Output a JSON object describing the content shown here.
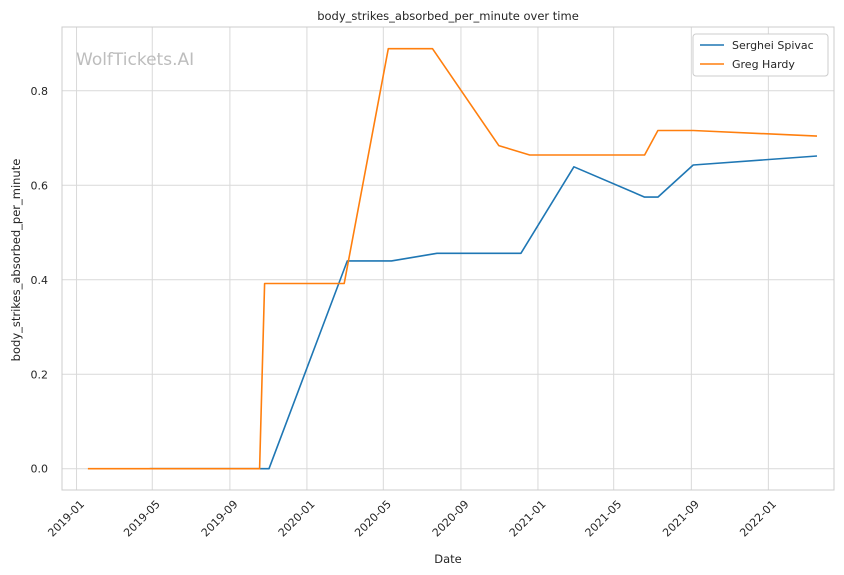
{
  "watermark": "WolfTickets.AI",
  "chart_data": {
    "type": "line",
    "title": "body_strikes_absorbed_per_minute over time",
    "xlabel": "Date",
    "ylabel": "body_strikes_absorbed_per_minute",
    "x_ticks": [
      "2019-01",
      "2019-05",
      "2019-09",
      "2020-01",
      "2020-05",
      "2020-09",
      "2021-01",
      "2021-05",
      "2021-09",
      "2022-01"
    ],
    "y_ticks": [
      "0.0",
      "0.2",
      "0.4",
      "0.6",
      "0.8"
    ],
    "xlim": [
      "2018-12-09",
      "2022-04-15"
    ],
    "ylim": [
      -0.045,
      0.935
    ],
    "grid": true,
    "legend_position": "top-right",
    "series": [
      {
        "name": "Serghei Spivac",
        "color": "#1f77b4",
        "points": [
          {
            "x": "2019-04-27",
            "y": 0.0
          },
          {
            "x": "2019-11-02",
            "y": 0.0
          },
          {
            "x": "2020-03-05",
            "y": 0.44
          },
          {
            "x": "2020-05-14",
            "y": 0.44
          },
          {
            "x": "2020-07-25",
            "y": 0.456
          },
          {
            "x": "2020-12-05",
            "y": 0.456
          },
          {
            "x": "2021-02-27",
            "y": 0.639
          },
          {
            "x": "2021-06-19",
            "y": 0.575
          },
          {
            "x": "2021-07-10",
            "y": 0.575
          },
          {
            "x": "2021-09-04",
            "y": 0.643
          },
          {
            "x": "2022-03-19",
            "y": 0.662
          }
        ]
      },
      {
        "name": "Greg Hardy",
        "color": "#ff7f0e",
        "points": [
          {
            "x": "2019-01-19",
            "y": 0.0
          },
          {
            "x": "2019-10-18",
            "y": 0.0
          },
          {
            "x": "2019-10-26",
            "y": 0.392
          },
          {
            "x": "2020-02-29",
            "y": 0.392
          },
          {
            "x": "2020-05-09",
            "y": 0.889
          },
          {
            "x": "2020-07-18",
            "y": 0.889
          },
          {
            "x": "2020-10-31",
            "y": 0.684
          },
          {
            "x": "2020-12-19",
            "y": 0.664
          },
          {
            "x": "2021-06-19",
            "y": 0.664
          },
          {
            "x": "2021-07-10",
            "y": 0.716
          },
          {
            "x": "2021-09-04",
            "y": 0.716
          },
          {
            "x": "2022-03-19",
            "y": 0.704
          }
        ]
      }
    ]
  }
}
